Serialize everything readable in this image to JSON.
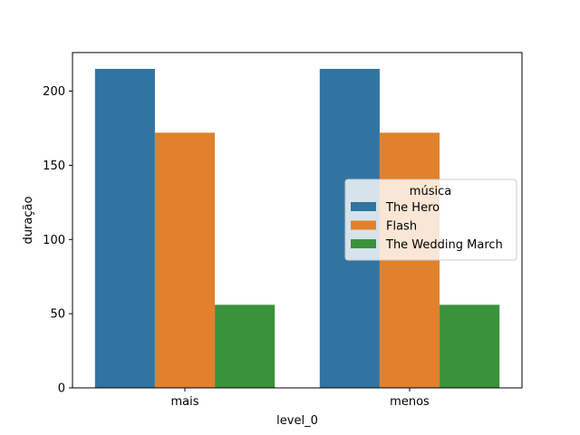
{
  "chart_data": {
    "type": "bar",
    "title": "",
    "xlabel": "level_0",
    "ylabel": "duração",
    "categories": [
      "mais",
      "menos"
    ],
    "series": [
      {
        "name": "The Hero",
        "values": [
          215,
          215
        ],
        "color": "#3274a1"
      },
      {
        "name": "Flash",
        "values": [
          172,
          172
        ],
        "color": "#e1812c"
      },
      {
        "name": "The Wedding March",
        "values": [
          56,
          56
        ],
        "color": "#3a923a"
      }
    ],
    "ylim": [
      0,
      226
    ],
    "yticks": [
      0,
      50,
      100,
      150,
      200
    ],
    "legend": {
      "title": "música",
      "placement": "center-right"
    },
    "grid": false
  }
}
